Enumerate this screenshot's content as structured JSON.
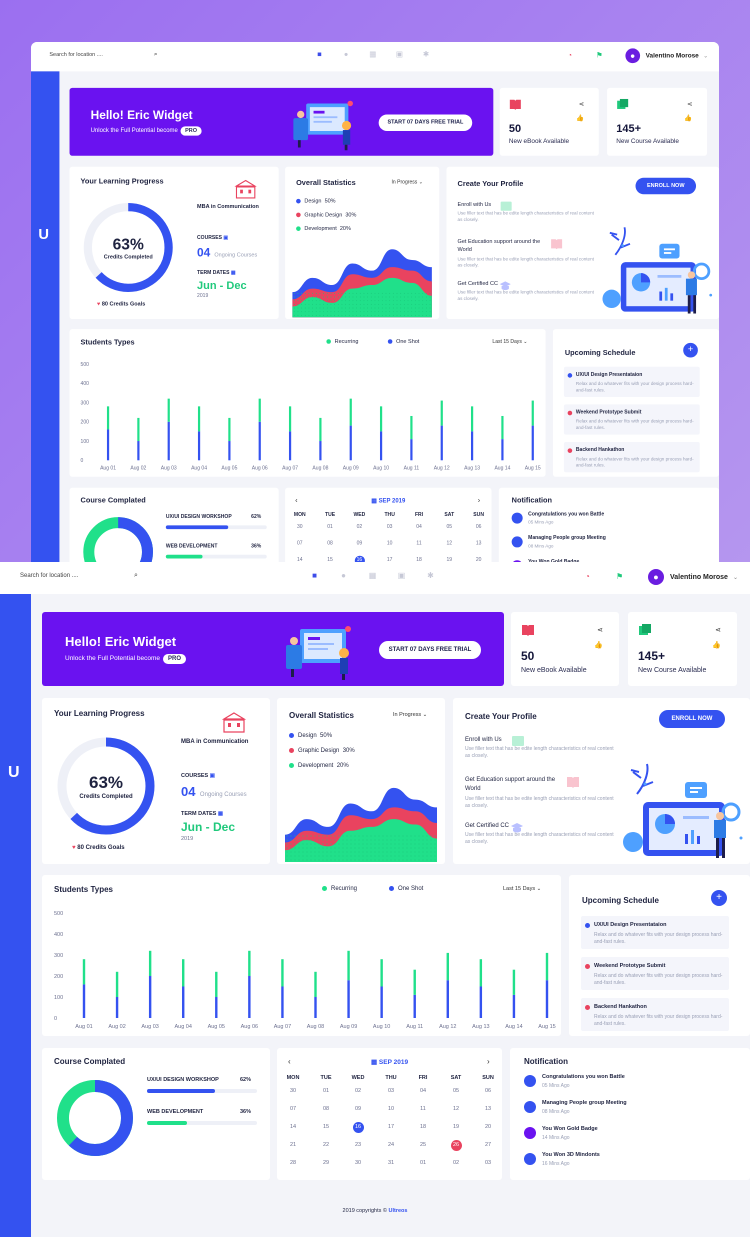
{
  "app": {
    "logo": "U"
  },
  "header": {
    "search_placeholder": "Search for location ....",
    "user_name": "Valentino Morose",
    "avatar_initial": "●"
  },
  "hero": {
    "title": "Hello! Eric Widget",
    "subtitle": "Unlock the Full Potential become",
    "badge": "PRO",
    "cta": "START 07 DAYS FREE TRIAL"
  },
  "stats": [
    {
      "value": "50",
      "label": "New eBook Available",
      "color": "#e9435f"
    },
    {
      "value": "145+",
      "label": "New Course Available",
      "color": "#20c97c"
    }
  ],
  "progress": {
    "title": "Your Learning Progress",
    "percent": 63,
    "percent_label": "63%",
    "ring_label": "Credits Completed",
    "goal": "80 Credits Goals",
    "program": "MBA in Communication",
    "courses_label": "COURSES",
    "courses_count": "04",
    "courses_text": "Ongoing Courses",
    "term_label": "TERM DATES",
    "term": "Jun - Dec",
    "year": "2019"
  },
  "overall": {
    "title": "Overall Statistics",
    "filter": "In Progress",
    "legend": [
      {
        "name": "Design",
        "value": "50%",
        "color": "#3452f0"
      },
      {
        "name": "Graphic Design",
        "value": "30%",
        "color": "#e9435f"
      },
      {
        "name": "Development",
        "value": "20%",
        "color": "#20e08a"
      }
    ]
  },
  "profile": {
    "title": "Create Your Profile",
    "button": "ENROLL NOW",
    "items": [
      {
        "title": "Enroll with Us",
        "desc": "Use filler text that has be edite length characteristics of real content as closely."
      },
      {
        "title": "Get Education support around the World",
        "desc": "Use filler text that has be edite length characteristics of real content as closely."
      },
      {
        "title": "Get Certified CC",
        "desc": "Use filler text that has be edite length characteristics of real content as closely."
      }
    ]
  },
  "students": {
    "title": "Students Types",
    "legend": [
      {
        "name": "Recurring",
        "color": "#20e08a"
      },
      {
        "name": "One Shot",
        "color": "#3452f0"
      }
    ],
    "filter": "Last 15 Days"
  },
  "schedule": {
    "title": "Upcoming Schedule",
    "add": "+",
    "items": [
      {
        "title": "UX/UI Design Presentataion",
        "desc": "Relax and do whatever fits with your design process hard-and-fast rules.",
        "color": "#3452f0"
      },
      {
        "title": "Weekend Prototype Submit",
        "desc": "Relax and do whatever fits with your design process hard-and-fast rules.",
        "color": "#e9435f"
      },
      {
        "title": "Backend Hankathon",
        "desc": "Relax and do whatever fits with your design process hard-and-fast rules.",
        "color": "#e9435f"
      }
    ]
  },
  "completed": {
    "title": "Course Complated",
    "items": [
      {
        "name": "UX/UI DESIGN WORKSHOP",
        "percent": 62,
        "label": "62%",
        "color": "#3452f0"
      },
      {
        "name": "WEB DEVELOPMENT",
        "percent": 36,
        "label": "36%",
        "color": "#20e08a"
      }
    ]
  },
  "calendar": {
    "month": "SEP 2019",
    "prev": "‹",
    "next": "›",
    "days": [
      "MON",
      "TUE",
      "WED",
      "THU",
      "FRI",
      "SAT",
      "SUN"
    ],
    "weeks": [
      [
        "30",
        "01",
        "02",
        "03",
        "04",
        "05",
        "06"
      ],
      [
        "07",
        "08",
        "09",
        "10",
        "11",
        "12",
        "13"
      ],
      [
        "14",
        "15",
        "16",
        "17",
        "18",
        "19",
        "20"
      ],
      [
        "21",
        "22",
        "23",
        "24",
        "25",
        "26",
        "27"
      ],
      [
        "28",
        "29",
        "30",
        "31",
        "01",
        "02",
        "03"
      ]
    ]
  },
  "notifications": {
    "title": "Notification",
    "items": [
      {
        "title": "Congratulations you won Battle",
        "time": "05 Mins Ago"
      },
      {
        "title": "Managing People group Meeting",
        "time": "08 Mins Ago"
      },
      {
        "title": "You Won Gold Badge",
        "time": "14 Mins Ago"
      },
      {
        "title": "You Won 3D Mindonts",
        "time": "16 Mins Ago"
      }
    ]
  },
  "footer": {
    "text": "2019 copyrights ©",
    "brand": "Ultreos"
  },
  "chart_data": [
    {
      "type": "bar",
      "title": "Students Types",
      "categories": [
        "Aug 01",
        "Aug 02",
        "Aug 03",
        "Aug 04",
        "Aug 05",
        "Aug 06",
        "Aug 07",
        "Aug 08",
        "Aug 09",
        "Aug 10",
        "Aug 11",
        "Aug 12",
        "Aug 13",
        "Aug 14",
        "Aug 15"
      ],
      "ylim": [
        0,
        500
      ],
      "yticks": [
        "0",
        "100",
        "200",
        "300",
        "400",
        "500"
      ],
      "series": [
        {
          "name": "One Shot",
          "values": [
            160,
            100,
            200,
            150,
            100,
            200,
            150,
            100,
            180,
            150,
            110,
            180,
            150,
            110,
            180
          ]
        },
        {
          "name": "Recurring",
          "values": [
            120,
            120,
            120,
            130,
            120,
            120,
            130,
            120,
            140,
            130,
            120,
            130,
            130,
            120,
            130
          ]
        }
      ]
    },
    {
      "type": "area",
      "title": "Overall Statistics",
      "series": [
        {
          "name": "Design",
          "values": [
            35,
            55,
            45,
            75,
            65,
            95,
            80,
            70
          ]
        },
        {
          "name": "Graphic Design",
          "values": [
            25,
            40,
            35,
            60,
            55,
            70,
            65,
            50
          ]
        },
        {
          "name": "Development",
          "values": [
            15,
            28,
            20,
            40,
            45,
            55,
            48,
            30
          ]
        }
      ]
    },
    {
      "type": "pie",
      "title": "Course Complated",
      "values": [
        62,
        38
      ]
    }
  ]
}
